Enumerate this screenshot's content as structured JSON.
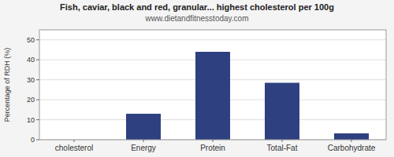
{
  "chart_data": {
    "type": "bar",
    "title": "Fish, caviar, black and red, granular... highest cholesterol per 100g",
    "subtitle": "www.dietandfitnesstoday.com",
    "categories": [
      "cholesterol",
      "Energy",
      "Protein",
      "Total-Fat",
      "Carbohydrate"
    ],
    "values": [
      0,
      13,
      44,
      28.5,
      3.2
    ],
    "color": "#2e4080",
    "ylabel": "Percentage of RDH (%)",
    "ylim": [
      0,
      55
    ],
    "yticks": [
      0,
      10,
      20,
      30,
      40,
      50
    ],
    "grid": true
  }
}
